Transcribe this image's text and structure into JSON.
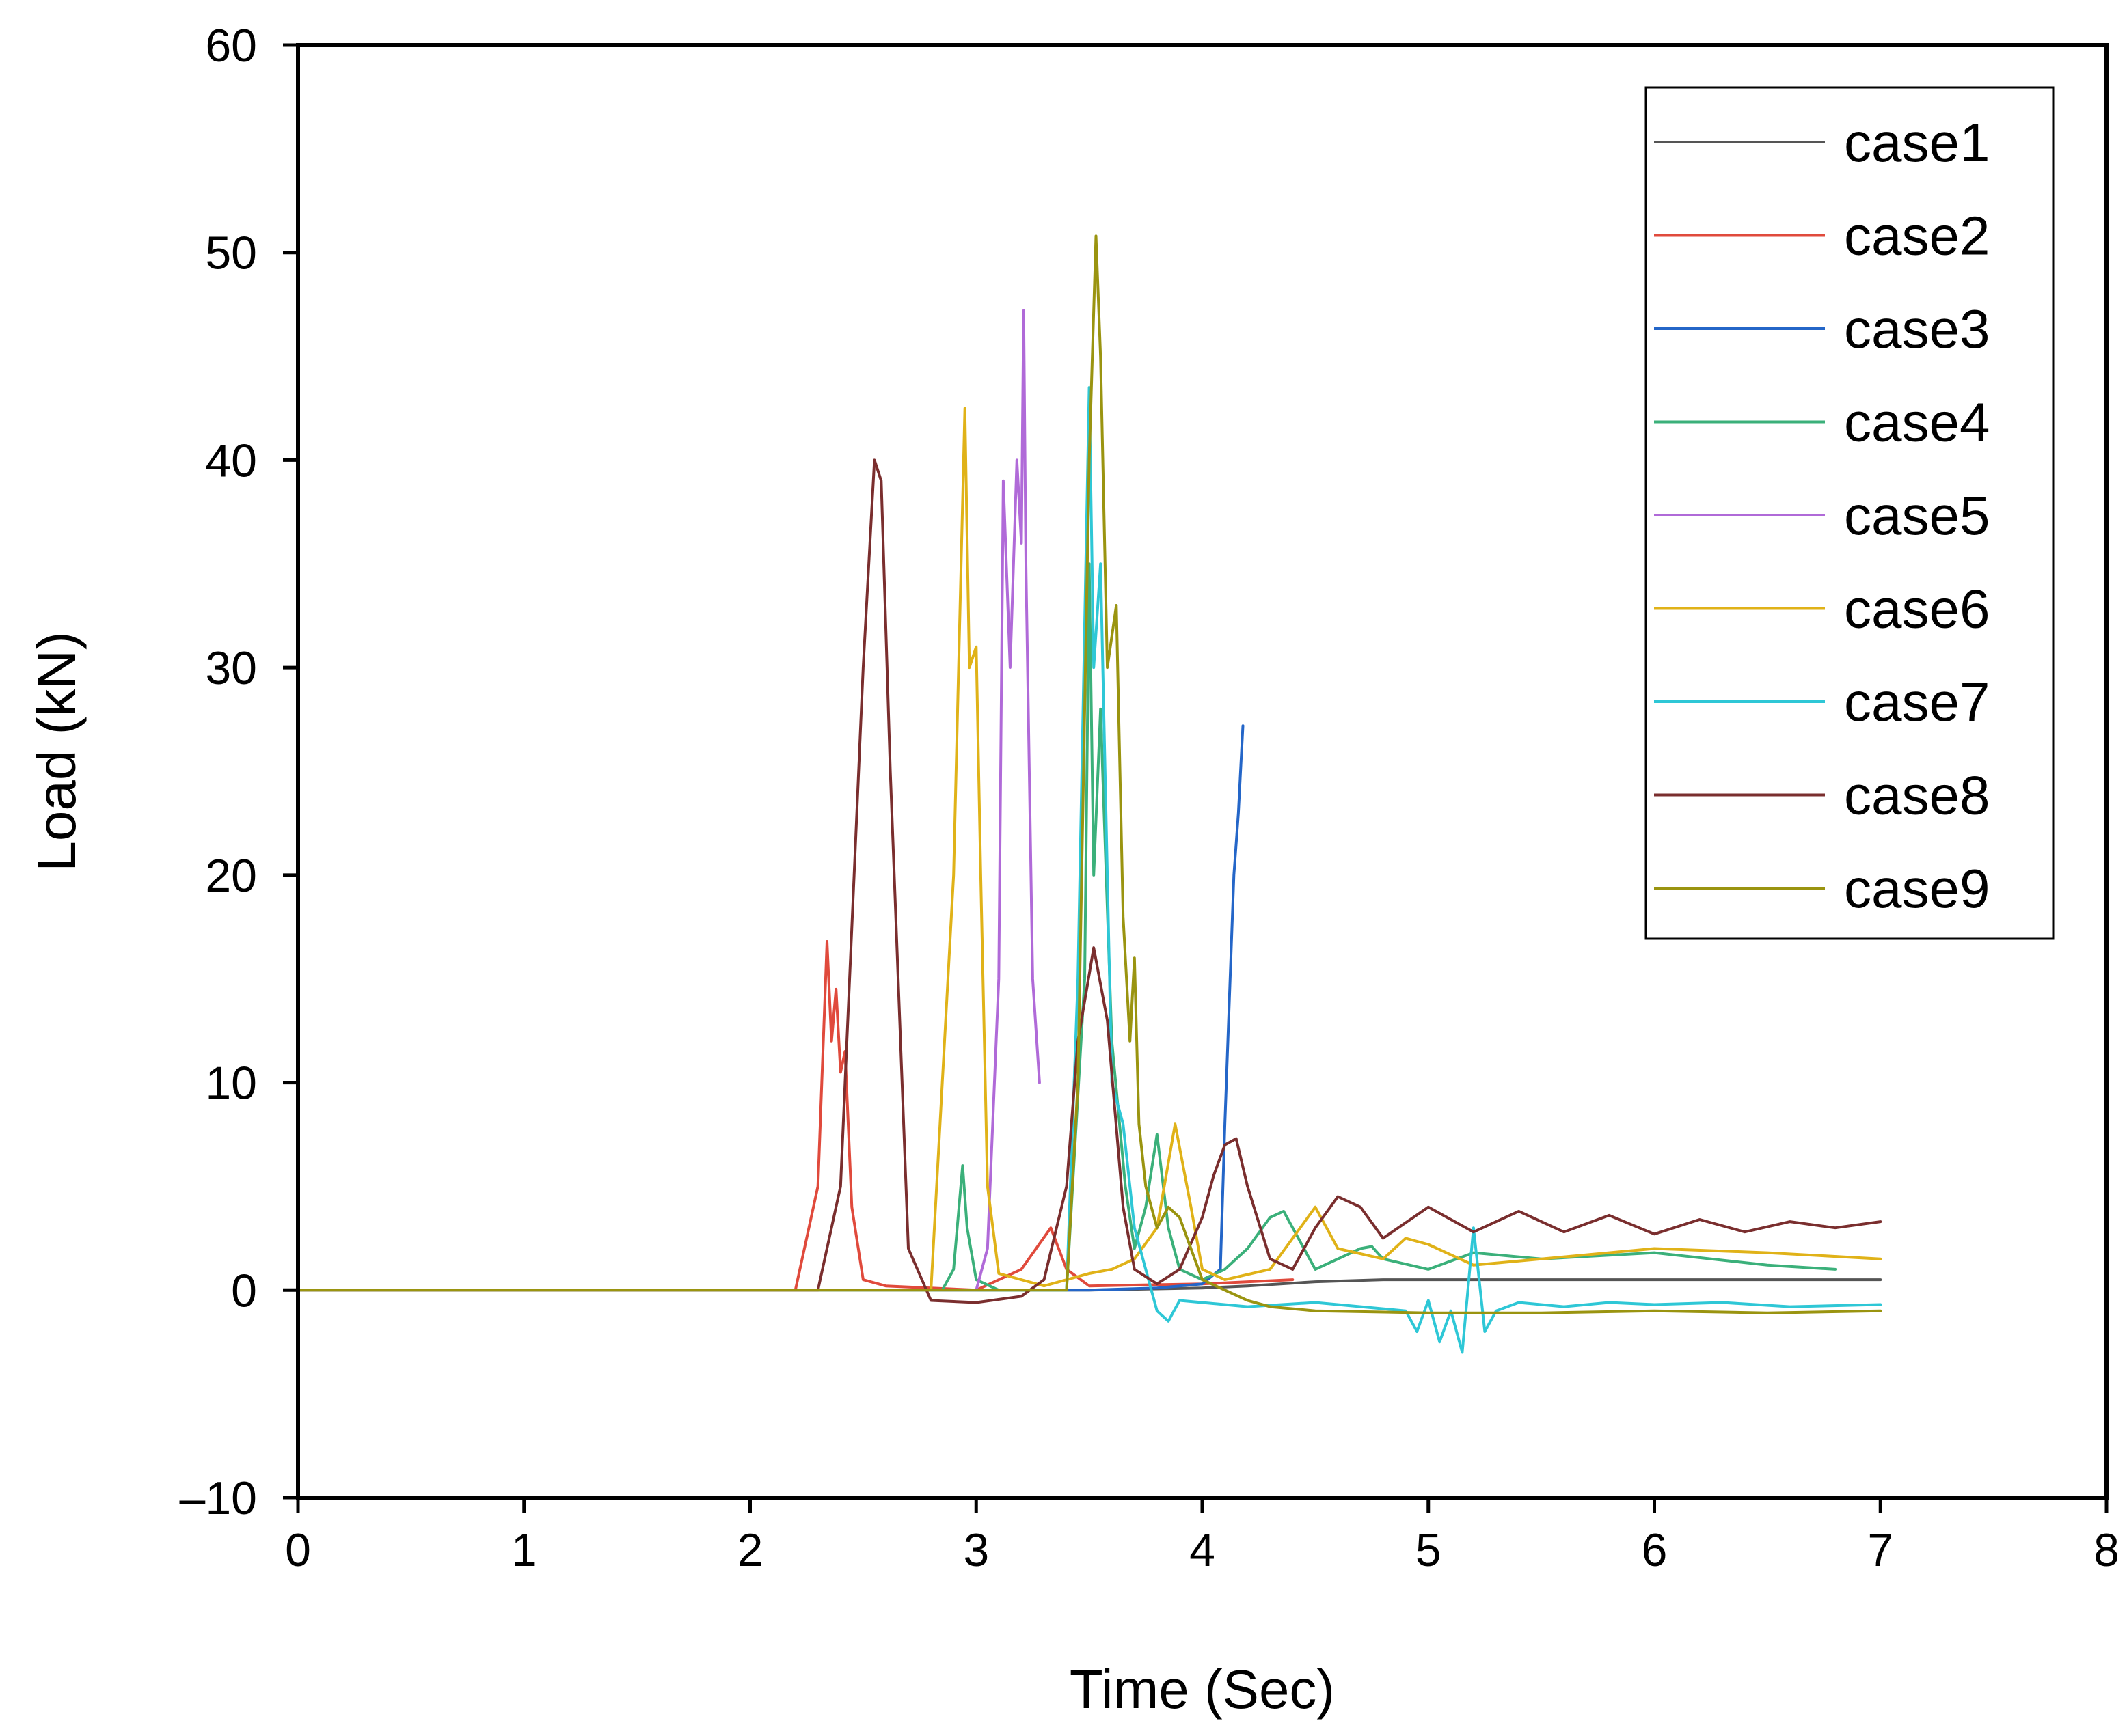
{
  "chart_data": {
    "type": "line",
    "title": "",
    "xlabel": "Time (Sec)",
    "ylabel": "Load (kN)",
    "xlim": [
      0,
      8
    ],
    "ylim": [
      -10,
      60
    ],
    "xticks": [
      "0",
      "1",
      "2",
      "3",
      "4",
      "5",
      "6",
      "7",
      "8"
    ],
    "yticks": [
      "–10",
      "0",
      "10",
      "20",
      "30",
      "40",
      "50",
      "60"
    ],
    "xtick_values": [
      0,
      1,
      2,
      3,
      4,
      5,
      6,
      7,
      8
    ],
    "ytick_values": [
      -10,
      0,
      10,
      20,
      30,
      40,
      50,
      60
    ],
    "grid": false,
    "legend_position": "top-right",
    "series": [
      {
        "name": "case1",
        "color": "#555555",
        "x": [
          0,
          2.0,
          2.8,
          3.5,
          4.0,
          4.2,
          4.5,
          4.8,
          5.0,
          5.5,
          6.0,
          6.5,
          7.0
        ],
        "y": [
          0,
          0,
          0,
          0,
          0.1,
          0.2,
          0.4,
          0.5,
          0.5,
          0.5,
          0.5,
          0.5,
          0.5
        ]
      },
      {
        "name": "case2",
        "color": "#e04a3c",
        "x": [
          0,
          2.2,
          2.3,
          2.34,
          2.36,
          2.38,
          2.4,
          2.42,
          2.45,
          2.5,
          2.6,
          3.0,
          3.2,
          3.33,
          3.4,
          3.5,
          4.0,
          4.4
        ],
        "y": [
          0,
          0,
          5.0,
          16.8,
          12.0,
          14.5,
          10.5,
          11.5,
          4.0,
          0.5,
          0.2,
          0,
          1.0,
          3.0,
          1.0,
          0.2,
          0.3,
          0.5
        ]
      },
      {
        "name": "case3",
        "color": "#2466c8",
        "x": [
          0,
          3.0,
          3.5,
          3.8,
          4.0,
          4.08,
          4.1,
          4.12,
          4.14,
          4.16,
          4.18
        ],
        "y": [
          0,
          0,
          0,
          0.1,
          0.3,
          1.0,
          8.0,
          14.0,
          20.0,
          23.0,
          27.2
        ]
      },
      {
        "name": "case4",
        "color": "#3bb07a",
        "x": [
          0,
          2.85,
          2.9,
          2.94,
          2.96,
          3.0,
          3.1,
          3.4,
          3.48,
          3.5,
          3.52,
          3.55,
          3.6,
          3.66,
          3.7,
          3.75,
          3.8,
          3.85,
          3.9,
          4.0,
          4.1,
          4.2,
          4.3,
          4.36,
          4.45,
          4.5,
          4.7,
          4.75,
          4.8,
          5.0,
          5.2,
          5.5,
          6.0,
          6.5,
          6.8
        ],
        "y": [
          0,
          0,
          1.0,
          6.0,
          3.0,
          0.5,
          0,
          0,
          15.0,
          35.0,
          20.0,
          28.0,
          12.0,
          5.0,
          2.0,
          4.0,
          7.5,
          3.0,
          1.0,
          0.5,
          1.0,
          2.0,
          3.5,
          3.8,
          2.0,
          1.0,
          2.0,
          2.1,
          1.5,
          1.0,
          1.8,
          1.5,
          1.8,
          1.2,
          1.0
        ]
      },
      {
        "name": "case5",
        "color": "#b06ad8",
        "x": [
          0,
          1.8,
          3.0,
          3.05,
          3.1,
          3.12,
          3.15,
          3.18,
          3.2,
          3.21,
          3.22,
          3.25,
          3.28
        ],
        "y": [
          0,
          0,
          0,
          2.0,
          15.0,
          39.0,
          30.0,
          40.0,
          36.0,
          47.2,
          35.0,
          15.0,
          10.0
        ]
      },
      {
        "name": "case6",
        "color": "#e0b218",
        "x": [
          0,
          2.8,
          2.9,
          2.95,
          2.97,
          3.0,
          3.02,
          3.05,
          3.1,
          3.3,
          3.5,
          3.6,
          3.7,
          3.8,
          3.88,
          3.95,
          4.0,
          4.1,
          4.3,
          4.5,
          4.6,
          4.8,
          4.9,
          5.0,
          5.2,
          5.5,
          6.0,
          6.5,
          7.0
        ],
        "y": [
          0,
          0,
          20.0,
          42.5,
          30.0,
          31.0,
          20.0,
          5.0,
          0.8,
          0.2,
          0.8,
          1.0,
          1.5,
          3.0,
          8.0,
          4.0,
          1.0,
          0.5,
          1.0,
          4.0,
          2.0,
          1.5,
          2.5,
          2.2,
          1.2,
          1.5,
          2.0,
          1.8,
          1.5
        ]
      },
      {
        "name": "case7",
        "color": "#2ec7d6",
        "x": [
          0,
          3.4,
          3.45,
          3.5,
          3.52,
          3.55,
          3.6,
          3.65,
          3.7,
          3.8,
          3.85,
          3.9,
          4.2,
          4.5,
          4.9,
          4.95,
          5.0,
          5.05,
          5.1,
          5.15,
          5.2,
          5.25,
          5.3,
          5.4,
          5.6,
          5.8,
          6.0,
          6.3,
          6.6,
          7.0
        ],
        "y": [
          0,
          0,
          15.0,
          43.5,
          30.0,
          35.0,
          10.0,
          8.0,
          3.0,
          -1.0,
          -1.5,
          -0.5,
          -0.8,
          -0.6,
          -1.0,
          -2.0,
          -0.5,
          -2.5,
          -1.0,
          -3.0,
          3.0,
          -2.0,
          -1.0,
          -0.6,
          -0.8,
          -0.6,
          -0.7,
          -0.6,
          -0.8,
          -0.7
        ]
      },
      {
        "name": "case8",
        "color": "#7a2e2e",
        "x": [
          0,
          2.3,
          2.4,
          2.5,
          2.55,
          2.58,
          2.62,
          2.7,
          2.8,
          3.0,
          3.2,
          3.3,
          3.4,
          3.45,
          3.52,
          3.58,
          3.65,
          3.7,
          3.8,
          3.9,
          4.0,
          4.05,
          4.1,
          4.15,
          4.2,
          4.3,
          4.4,
          4.5,
          4.6,
          4.7,
          4.8,
          5.0,
          5.2,
          5.4,
          5.6,
          5.8,
          6.0,
          6.2,
          6.4,
          6.6,
          6.8,
          7.0
        ],
        "y": [
          0,
          0,
          5.0,
          30.0,
          40.0,
          39.0,
          25.0,
          2.0,
          -0.5,
          -0.6,
          -0.3,
          0.5,
          5.0,
          12.0,
          16.5,
          13.0,
          4.0,
          1.0,
          0.3,
          1.0,
          3.5,
          5.5,
          7.0,
          7.3,
          5.0,
          1.5,
          1.0,
          3.0,
          4.5,
          4.0,
          2.5,
          4.0,
          2.8,
          3.8,
          2.8,
          3.6,
          2.7,
          3.4,
          2.8,
          3.3,
          3.0,
          3.3
        ]
      },
      {
        "name": "case9",
        "color": "#9a9410",
        "x": [
          0,
          3.4,
          3.45,
          3.5,
          3.53,
          3.55,
          3.58,
          3.62,
          3.65,
          3.68,
          3.7,
          3.72,
          3.75,
          3.8,
          3.85,
          3.9,
          4.0,
          4.2,
          4.3,
          4.5,
          5.0,
          5.5,
          6.0,
          6.5,
          7.0
        ],
        "y": [
          0,
          0,
          10.0,
          40.0,
          50.8,
          45.0,
          30.0,
          33.0,
          18.0,
          12.0,
          16.0,
          8.0,
          5.0,
          3.0,
          4.0,
          3.5,
          0.5,
          -0.5,
          -0.8,
          -1.0,
          -1.1,
          -1.1,
          -1.0,
          -1.1,
          -1.0
        ]
      }
    ]
  }
}
